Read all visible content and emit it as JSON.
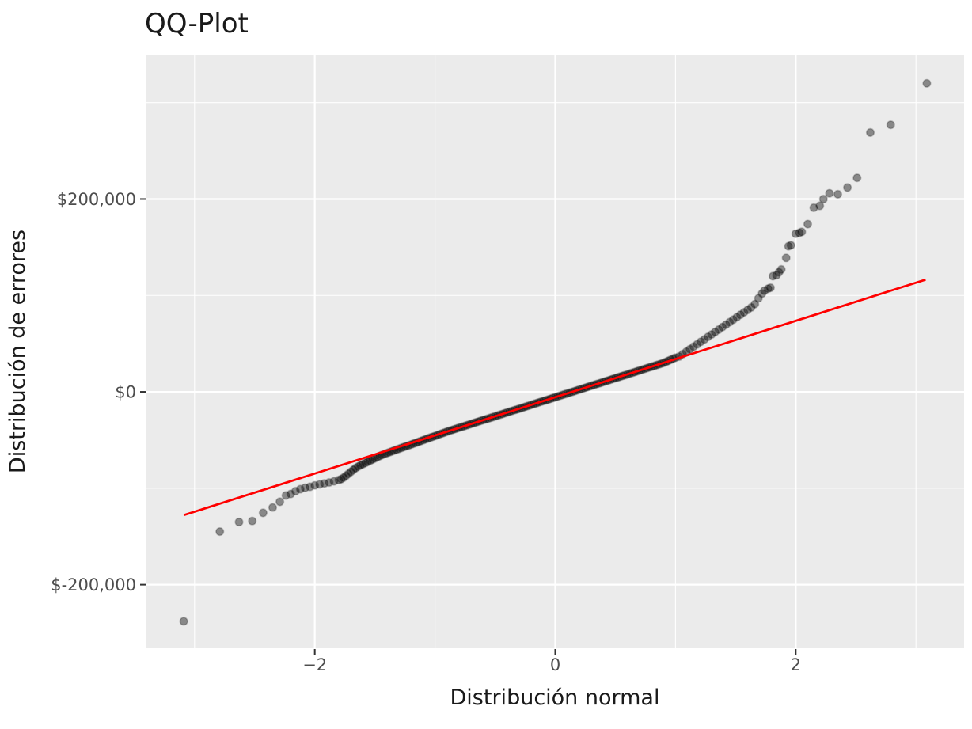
{
  "title": "QQ-Plot",
  "colors": {
    "panel_background": "#EBEBEB",
    "grid_line": "#FFFFFF",
    "point_fill": "#000000",
    "reference_line": "#FF0000",
    "tick_label_text": "#4D4D4D",
    "title_text": "#1A1A1A",
    "axis_tick_mark": "#333333"
  },
  "chart_data": {
    "type": "scatter",
    "title": "QQ-Plot",
    "xlabel": "Distribución normal",
    "ylabel": "Distribución de errores",
    "xlim": [
      -3.4,
      3.4
    ],
    "ylim": [
      -266000,
      349000
    ],
    "grid": "on",
    "legend": "none",
    "x_ticks": [
      {
        "value": -2,
        "label": "−2"
      },
      {
        "value": 0,
        "label": "0"
      },
      {
        "value": 2,
        "label": "2"
      }
    ],
    "y_ticks": [
      {
        "value": 200000,
        "label": "$200,000"
      },
      {
        "value": 0,
        "label": "$0"
      },
      {
        "value": -200000,
        "label": "$-200,000"
      }
    ],
    "x_minor_ticks": [
      -3,
      -1,
      1,
      3
    ],
    "y_minor_ticks": [
      300000,
      100000,
      -100000
    ],
    "reference_line": {
      "x": [
        -3.09,
        3.08
      ],
      "y": [
        -127900,
        116400
      ],
      "color": "#FF0000"
    },
    "point_style": {
      "radius": 4.8,
      "fill_opacity": 0.42,
      "stroke_opacity": 0.22
    },
    "points": [
      [
        -3.09,
        -238000
      ],
      [
        -2.79,
        -145000
      ],
      [
        -2.63,
        -135000
      ],
      [
        -2.52,
        -134000
      ],
      [
        -2.43,
        -125500
      ],
      [
        -2.35,
        -120000
      ],
      [
        -2.29,
        -114000
      ],
      [
        -2.24,
        -107500
      ],
      [
        -2.2,
        -106000
      ],
      [
        -2.16,
        -103000
      ],
      [
        -2.12,
        -101000
      ],
      [
        -2.08,
        -99500
      ],
      [
        -2.04,
        -98500
      ],
      [
        -2.0,
        -97000
      ],
      [
        -1.96,
        -96000
      ],
      [
        -1.92,
        -95000
      ],
      [
        -1.88,
        -94000
      ],
      [
        -1.84,
        -92800
      ],
      [
        -1.8,
        -91400
      ],
      [
        -1.78,
        -90500
      ],
      [
        -1.76,
        -89000
      ],
      [
        -1.74,
        -87000
      ],
      [
        -1.72,
        -85000
      ],
      [
        -1.7,
        -83000
      ],
      [
        -1.68,
        -81000
      ],
      [
        -1.66,
        -79000
      ],
      [
        -1.64,
        -77500
      ],
      [
        -1.62,
        -76200
      ],
      [
        -1.6,
        -75000
      ],
      [
        -1.58,
        -73800
      ],
      [
        -1.56,
        -72600
      ],
      [
        -1.54,
        -71400
      ],
      [
        -1.52,
        -70200
      ],
      [
        -1.5,
        -69000
      ],
      [
        -1.48,
        -67800
      ],
      [
        -1.46,
        -66600
      ],
      [
        -1.44,
        -65500
      ],
      [
        -1.42,
        -64400
      ],
      [
        -1.4,
        -63600
      ],
      [
        -1.38,
        -62700
      ],
      [
        -1.36,
        -61800
      ],
      [
        -1.34,
        -60900
      ],
      [
        -1.32,
        -60000
      ],
      [
        -1.3,
        -59100
      ],
      [
        -1.28,
        -58200
      ],
      [
        -1.26,
        -57300
      ],
      [
        -1.24,
        -56400
      ],
      [
        -1.22,
        -55600
      ],
      [
        -1.2,
        -54700
      ],
      [
        -1.18,
        -53800
      ],
      [
        -1.16,
        -52900
      ],
      [
        -1.14,
        -52000
      ],
      [
        -1.12,
        -51100
      ],
      [
        -1.1,
        -50200
      ],
      [
        -1.08,
        -49300
      ],
      [
        -1.06,
        -48400
      ],
      [
        -1.04,
        -47500
      ],
      [
        -1.02,
        -46600
      ],
      [
        -1.0,
        -45800
      ],
      [
        -0.98,
        -44900
      ],
      [
        -0.96,
        -44000
      ],
      [
        -0.94,
        -43100
      ],
      [
        -0.92,
        -42200
      ],
      [
        -0.9,
        -41300
      ],
      [
        -0.88,
        -40400
      ],
      [
        -0.86,
        -39600
      ],
      [
        -0.84,
        -38800
      ],
      [
        -0.82,
        -38000
      ],
      [
        -0.8,
        -37200
      ],
      [
        -0.78,
        -36500
      ],
      [
        -0.76,
        -35700
      ],
      [
        -0.74,
        -34900
      ],
      [
        -0.72,
        -34100
      ],
      [
        -0.7,
        -33300
      ],
      [
        -0.68,
        -32500
      ],
      [
        -0.66,
        -31700
      ],
      [
        -0.64,
        -30900
      ],
      [
        -0.62,
        -30100
      ],
      [
        -0.6,
        -29300
      ],
      [
        -0.58,
        -28500
      ],
      [
        -0.56,
        -27800
      ],
      [
        -0.54,
        -27000
      ],
      [
        -0.52,
        -26200
      ],
      [
        -0.5,
        -25400
      ],
      [
        -0.48,
        -24600
      ],
      [
        -0.46,
        -23800
      ],
      [
        -0.44,
        -23000
      ],
      [
        -0.42,
        -22200
      ],
      [
        -0.4,
        -21400
      ],
      [
        -0.38,
        -20600
      ],
      [
        -0.36,
        -19800
      ],
      [
        -0.34,
        -19000
      ],
      [
        -0.32,
        -18300
      ],
      [
        -0.3,
        -17500
      ],
      [
        -0.28,
        -16700
      ],
      [
        -0.26,
        -15900
      ],
      [
        -0.24,
        -15100
      ],
      [
        -0.22,
        -14300
      ],
      [
        -0.2,
        -13500
      ],
      [
        -0.18,
        -12700
      ],
      [
        -0.16,
        -11900
      ],
      [
        -0.14,
        -11100
      ],
      [
        -0.12,
        -10300
      ],
      [
        -0.1,
        -9600
      ],
      [
        -0.08,
        -8800
      ],
      [
        -0.06,
        -8000
      ],
      [
        -0.04,
        -7200
      ],
      [
        -0.02,
        -6400
      ],
      [
        0.0,
        -5600
      ],
      [
        0.02,
        -4800
      ],
      [
        0.04,
        -4000
      ],
      [
        0.06,
        -3200
      ],
      [
        0.08,
        -2400
      ],
      [
        0.1,
        -1600
      ],
      [
        0.12,
        -900
      ],
      [
        0.14,
        -100
      ],
      [
        0.16,
        700
      ],
      [
        0.18,
        1500
      ],
      [
        0.2,
        2300
      ],
      [
        0.22,
        3100
      ],
      [
        0.24,
        3900
      ],
      [
        0.26,
        4700
      ],
      [
        0.28,
        5500
      ],
      [
        0.3,
        6300
      ],
      [
        0.32,
        7100
      ],
      [
        0.34,
        7900
      ],
      [
        0.36,
        8600
      ],
      [
        0.38,
        9400
      ],
      [
        0.4,
        10200
      ],
      [
        0.42,
        11000
      ],
      [
        0.44,
        11800
      ],
      [
        0.46,
        12600
      ],
      [
        0.48,
        13400
      ],
      [
        0.5,
        14200
      ],
      [
        0.52,
        15000
      ],
      [
        0.54,
        15800
      ],
      [
        0.56,
        16600
      ],
      [
        0.58,
        17300
      ],
      [
        0.6,
        18100
      ],
      [
        0.62,
        18900
      ],
      [
        0.64,
        19700
      ],
      [
        0.66,
        20500
      ],
      [
        0.68,
        21300
      ],
      [
        0.7,
        22100
      ],
      [
        0.72,
        22900
      ],
      [
        0.74,
        23700
      ],
      [
        0.76,
        24500
      ],
      [
        0.78,
        25300
      ],
      [
        0.8,
        26000
      ],
      [
        0.82,
        26800
      ],
      [
        0.84,
        27600
      ],
      [
        0.86,
        28400
      ],
      [
        0.88,
        29200
      ],
      [
        0.9,
        30000
      ],
      [
        0.92,
        31100
      ],
      [
        0.94,
        32200
      ],
      [
        0.96,
        33300
      ],
      [
        0.98,
        34400
      ],
      [
        1.0,
        35500
      ],
      [
        1.03,
        36600
      ],
      [
        1.06,
        39100
      ],
      [
        1.09,
        41700
      ],
      [
        1.12,
        44200
      ],
      [
        1.15,
        46800
      ],
      [
        1.18,
        49300
      ],
      [
        1.21,
        51900
      ],
      [
        1.24,
        54400
      ],
      [
        1.27,
        57000
      ],
      [
        1.3,
        59500
      ],
      [
        1.33,
        62100
      ],
      [
        1.36,
        64600
      ],
      [
        1.39,
        67200
      ],
      [
        1.42,
        69700
      ],
      [
        1.45,
        72300
      ],
      [
        1.48,
        74800
      ],
      [
        1.51,
        77400
      ],
      [
        1.54,
        79900
      ],
      [
        1.57,
        82500
      ],
      [
        1.6,
        85000
      ],
      [
        1.63,
        87600
      ],
      [
        1.66,
        91000
      ],
      [
        1.69,
        97000
      ],
      [
        1.72,
        102000
      ],
      [
        1.74,
        105000
      ],
      [
        1.77,
        107000
      ],
      [
        1.79,
        108000
      ],
      [
        1.81,
        120000
      ],
      [
        1.84,
        121000
      ],
      [
        1.86,
        124000
      ],
      [
        1.88,
        127000
      ],
      [
        1.92,
        139000
      ],
      [
        1.94,
        151000
      ],
      [
        1.96,
        152000
      ],
      [
        2.0,
        164000
      ],
      [
        2.03,
        165000
      ],
      [
        2.05,
        166000
      ],
      [
        2.1,
        174000
      ],
      [
        2.15,
        191000
      ],
      [
        2.2,
        193000
      ],
      [
        2.23,
        200000
      ],
      [
        2.28,
        206000
      ],
      [
        2.35,
        205000
      ],
      [
        2.43,
        212000
      ],
      [
        2.51,
        222000
      ],
      [
        2.62,
        269000
      ],
      [
        2.79,
        277000
      ],
      [
        3.09,
        320000
      ]
    ]
  }
}
